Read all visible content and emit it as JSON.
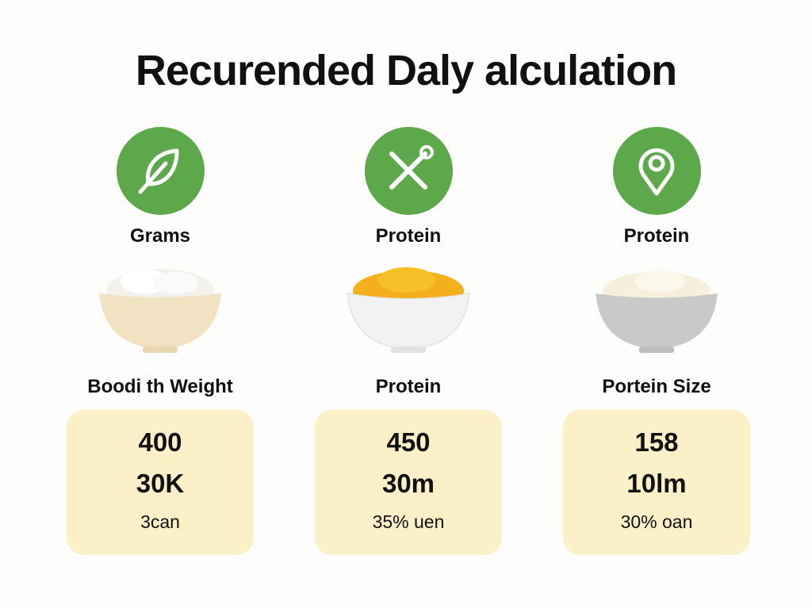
{
  "title": "Recurended Daly alculation",
  "accent_color": "#5ea84c",
  "card_color": "#fcf0c8",
  "columns": [
    {
      "icon": "leaf-icon",
      "label": "Grams",
      "bowl": "rice-bowl",
      "sublabel": "Boodi th Weight",
      "values": [
        "400",
        "30K",
        "3can"
      ]
    },
    {
      "icon": "utensils-cross-icon",
      "label": "Protein",
      "bowl": "orange-food-bowl",
      "sublabel": "Protein",
      "values": [
        "450",
        "30m",
        "35% uen"
      ]
    },
    {
      "icon": "location-pin-icon",
      "label": "Protein",
      "bowl": "cream-food-bowl",
      "sublabel": "Portein Size",
      "values": [
        "158",
        "10lm",
        "30% oan"
      ]
    }
  ]
}
